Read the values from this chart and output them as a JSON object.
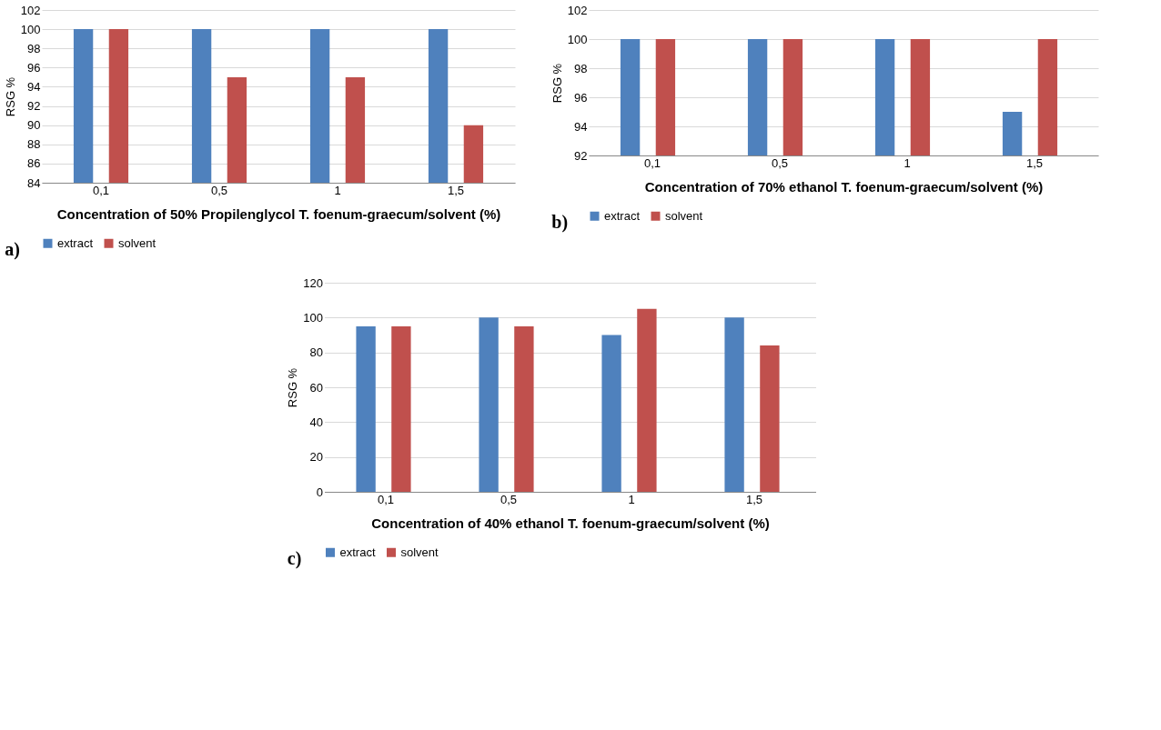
{
  "chart_data": [
    {
      "type": "bar",
      "categories": [
        "0,1",
        "0,5",
        "1",
        "1,5"
      ],
      "xlabel": "Concentration of 50% Propilenglycol T. foenum-graecum/solvent (%)",
      "ylabel": "RSG %",
      "ylim": [
        84,
        102
      ],
      "yticks": [
        84,
        86,
        88,
        90,
        92,
        94,
        96,
        98,
        100,
        102
      ],
      "grid": "y",
      "legend": "bottom",
      "annotations": [
        "a)"
      ],
      "series": [
        {
          "name": "extract",
          "color": "#4f81bd",
          "values": [
            100,
            100,
            100,
            100
          ]
        },
        {
          "name": "solvent",
          "color": "#c0504d",
          "values": [
            100,
            95,
            95,
            90
          ]
        }
      ]
    },
    {
      "type": "bar",
      "categories": [
        "0,1",
        "0,5",
        "1",
        "1,5"
      ],
      "xlabel": "Concentration of 70% ethanol T. foenum-graecum/solvent (%)",
      "ylabel": "RSG %",
      "ylim": [
        92,
        102
      ],
      "yticks": [
        92,
        94,
        96,
        98,
        100,
        102
      ],
      "grid": "y",
      "legend": "bottom",
      "annotations": [
        "b)"
      ],
      "series": [
        {
          "name": "extract",
          "color": "#4f81bd",
          "values": [
            100,
            100,
            100,
            95
          ]
        },
        {
          "name": "solvent",
          "color": "#c0504d",
          "values": [
            100,
            100,
            100,
            100
          ]
        }
      ]
    },
    {
      "type": "bar",
      "categories": [
        "0,1",
        "0,5",
        "1",
        "1,5"
      ],
      "xlabel": "Concentration of 40% ethanol T. foenum-graecum/solvent (%)",
      "ylabel": "RSG %",
      "ylim": [
        0,
        120
      ],
      "yticks": [
        0,
        20,
        40,
        60,
        80,
        100,
        120
      ],
      "grid": "y",
      "legend": "bottom",
      "annotations": [
        "c)"
      ],
      "series": [
        {
          "name": "extract",
          "color": "#4f81bd",
          "values": [
            95,
            100,
            90,
            100
          ]
        },
        {
          "name": "solvent",
          "color": "#c0504d",
          "values": [
            95,
            95,
            105,
            84
          ]
        }
      ]
    }
  ]
}
